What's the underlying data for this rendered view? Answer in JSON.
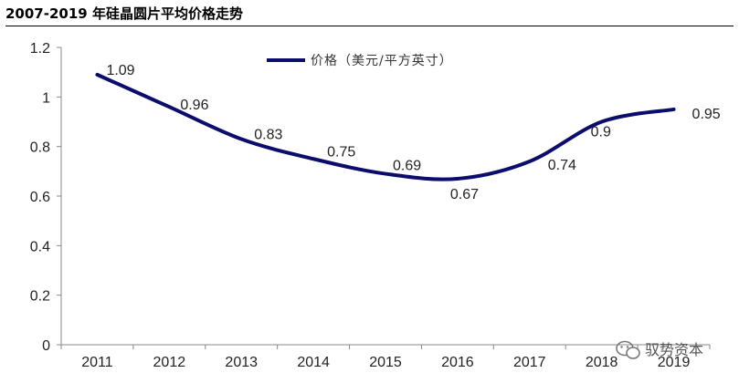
{
  "header": {
    "title": "2007-2019 年硅晶圆片平均价格走势"
  },
  "watermark": {
    "text": "驭势资本"
  },
  "chart_data": {
    "type": "line",
    "title": "2007-2019 年硅晶圆片平均价格走势",
    "categories": [
      "2011",
      "2012",
      "2013",
      "2014",
      "2015",
      "2016",
      "2017",
      "2018",
      "2019"
    ],
    "series": [
      {
        "name": "价格（美元/平方英寸）",
        "values": [
          1.09,
          0.96,
          0.83,
          0.75,
          0.69,
          0.67,
          0.74,
          0.9,
          0.95
        ]
      }
    ],
    "data_labels": [
      "1.09",
      "0.96",
      "0.83",
      "0.75",
      "0.69",
      "0.67",
      "0.74",
      "0.9",
      "0.95"
    ],
    "ylim": [
      0,
      1.2
    ],
    "yticks": [
      0,
      0.2,
      0.4,
      0.6,
      0.8,
      1,
      1.2
    ],
    "ytick_labels": [
      "0",
      "0.2",
      "0.4",
      "0.6",
      "0.8",
      "1",
      "1.2"
    ],
    "xlabel": "",
    "ylabel": "",
    "legend_position": "top-center",
    "grid": false,
    "smooth": true,
    "line_color": "#0c0c6e"
  }
}
